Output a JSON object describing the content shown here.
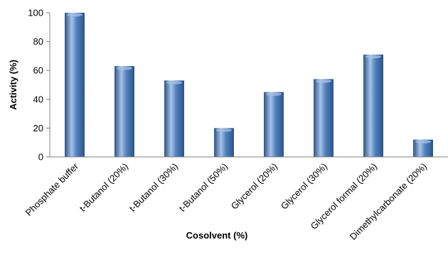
{
  "colors": {
    "bar_fill": "#4F81BD",
    "bar_highlight": "#A7C2E6",
    "bar_shadow": "#2E5487",
    "axis": "#808080"
  },
  "chart_data": {
    "type": "bar",
    "title": "",
    "xlabel": "Cosolvent (%)",
    "ylabel": "Activity (%)",
    "ylim": [
      0,
      100
    ],
    "yticks": [
      0,
      20,
      40,
      60,
      80,
      100
    ],
    "grid": false,
    "legend": "none",
    "categories": [
      "Phosphate buffer",
      "t-Butanol (20%)",
      "t-Butanol (30%)",
      "t-Butanol (50%)",
      "Glycerol (20%)",
      "Glycerol (30%)",
      "Glycerol formal (20%)",
      "Dimethylcarbonate (20%)"
    ],
    "values": [
      100,
      63,
      53,
      20,
      45,
      54,
      71,
      12
    ]
  }
}
